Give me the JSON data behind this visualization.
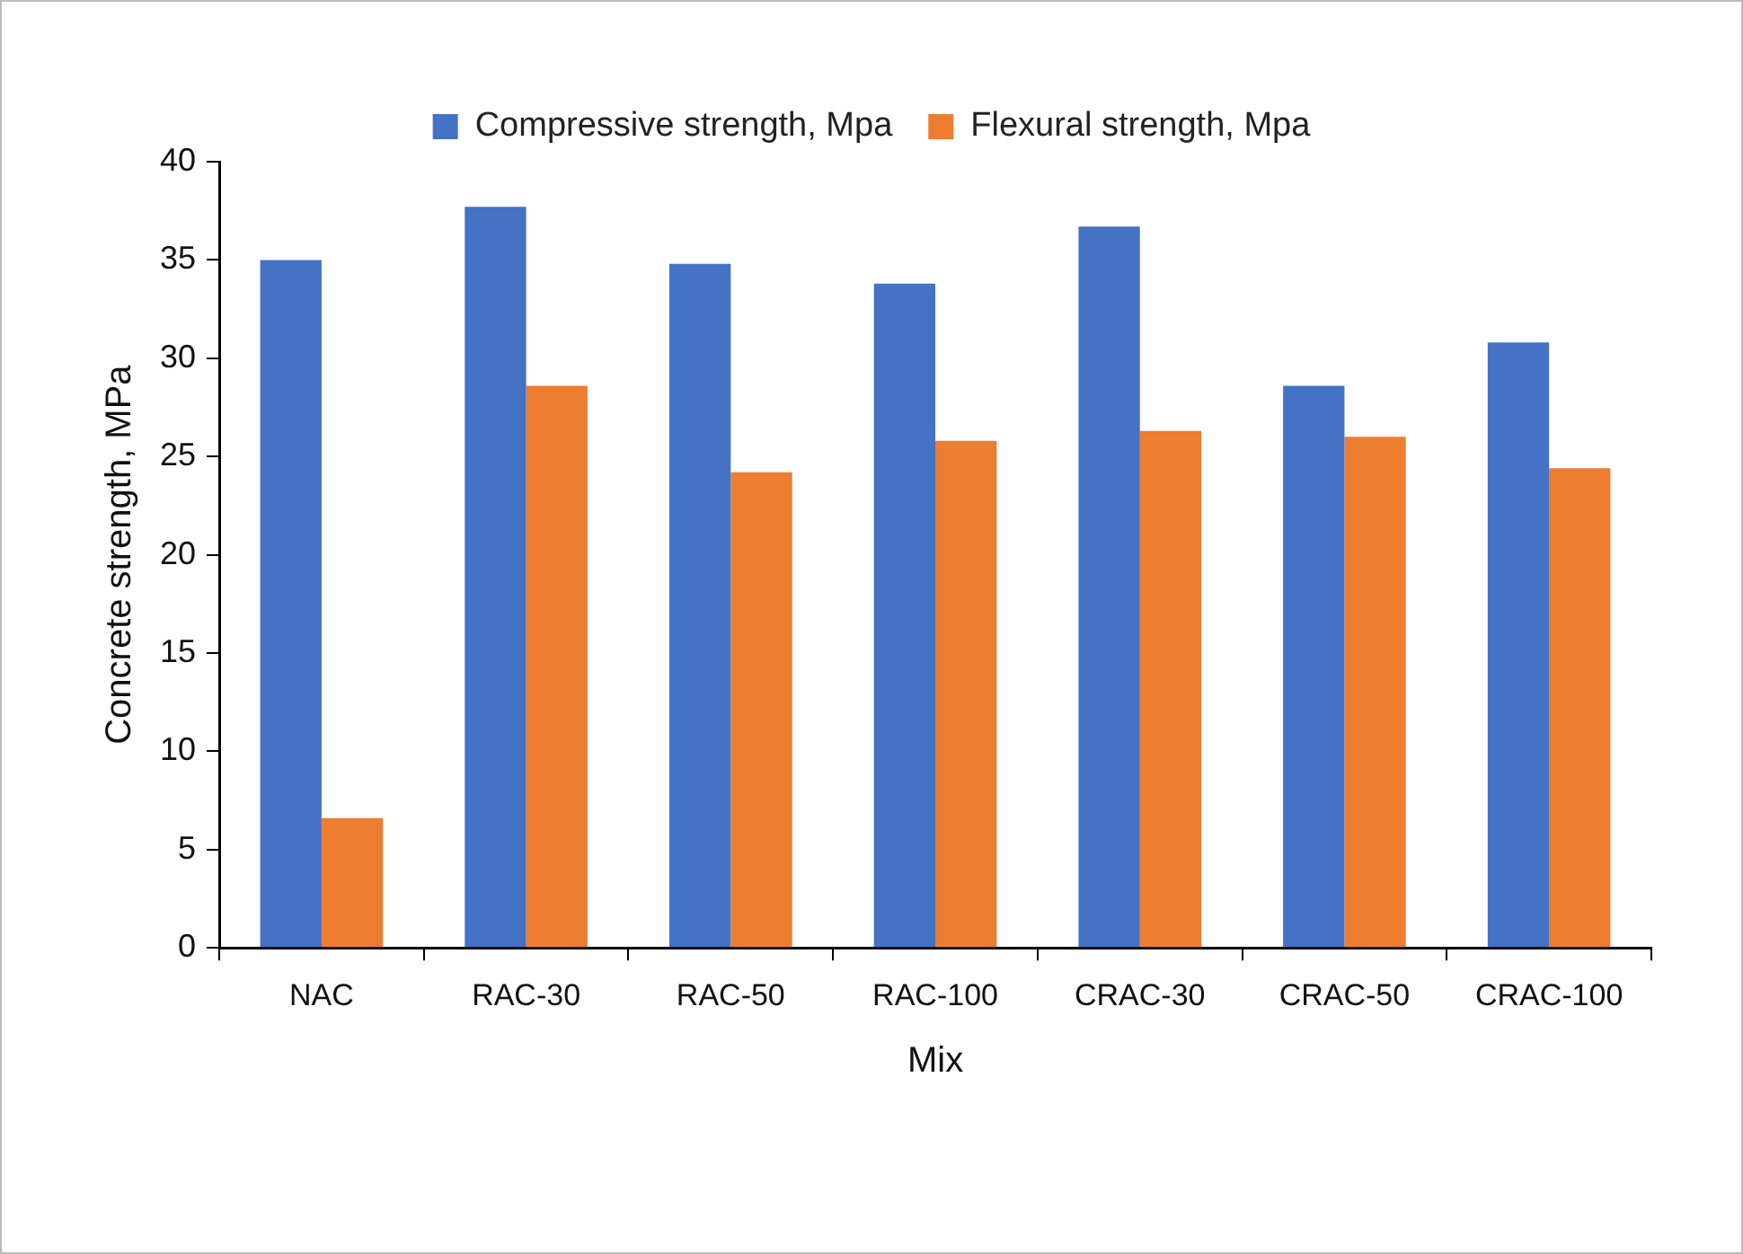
{
  "chart_data": {
    "type": "bar",
    "xlabel": "Mix",
    "ylabel": "Concrete strength, MPa",
    "categories": [
      "NAC",
      "RAC-30",
      "RAC-50",
      "RAC-100",
      "CRAC-30",
      "CRAC-50",
      "CRAC-100"
    ],
    "series": [
      {
        "name": "Compressive strength, Mpa",
        "color": "#4472c4",
        "values": [
          35.0,
          37.7,
          34.8,
          33.8,
          36.7,
          28.6,
          30.8
        ]
      },
      {
        "name": "Flexural strength, Mpa",
        "color": "#ed7d31",
        "values": [
          6.6,
          28.6,
          24.2,
          25.8,
          26.3,
          26.0,
          24.4
        ]
      }
    ],
    "ylim": [
      0,
      40
    ],
    "yticks": [
      0,
      5,
      10,
      15,
      20,
      25,
      30,
      35,
      40
    ],
    "grid": false,
    "legend": "top"
  }
}
